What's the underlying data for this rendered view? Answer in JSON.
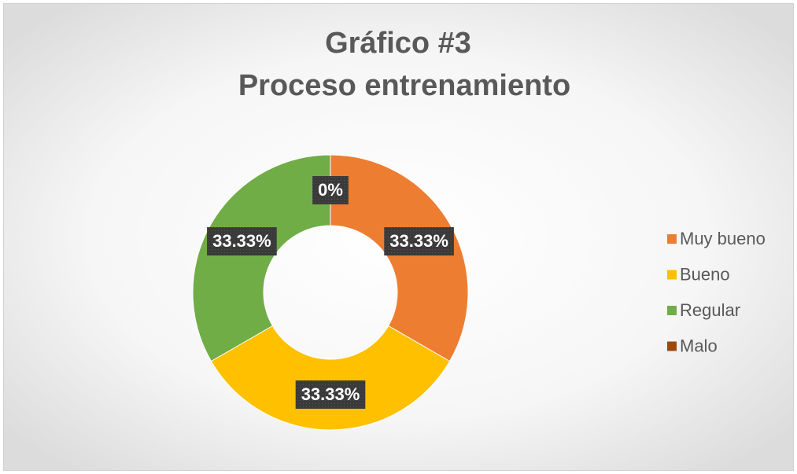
{
  "chart_data": {
    "type": "donut",
    "title": "Gráfico #3",
    "subtitle": "Proceso entrenamiento",
    "categories": [
      "Muy bueno",
      "Bueno",
      "Regular",
      "Malo"
    ],
    "values": [
      33.33,
      33.33,
      33.33,
      0
    ],
    "value_labels": [
      "33.33%",
      "33.33%",
      "33.33%",
      "0%"
    ],
    "colors": [
      "#ED7D31",
      "#FFC000",
      "#70AD47",
      "#9E480E"
    ],
    "legend": "right"
  }
}
